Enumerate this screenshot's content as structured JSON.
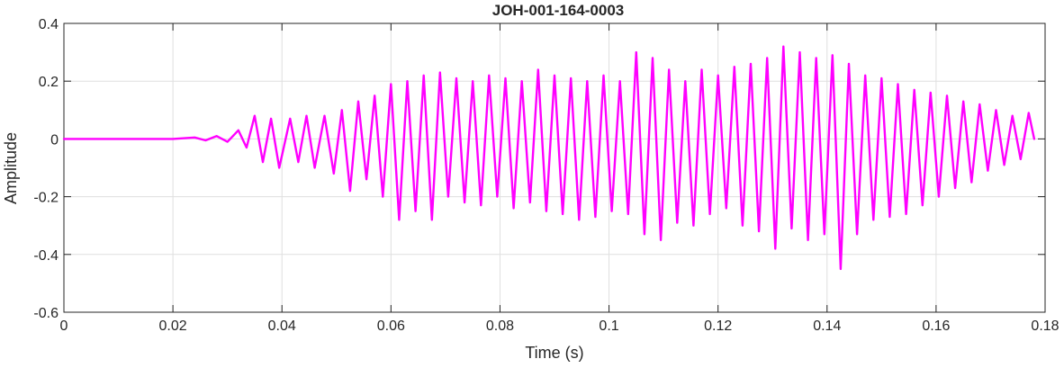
{
  "chart_data": {
    "type": "line",
    "title": "JOH-001-164-0003",
    "xlabel": "Time (s)",
    "ylabel": "Amplitude",
    "xlim": [
      0,
      0.18
    ],
    "ylim": [
      -0.6,
      0.4
    ],
    "xticks": [
      0,
      0.02,
      0.04,
      0.06,
      0.08,
      0.1,
      0.12,
      0.14,
      0.16,
      0.18
    ],
    "xtick_labels": [
      "0",
      "0.02",
      "0.04",
      "0.06",
      "0.08",
      "0.1",
      "0.12",
      "0.14",
      "0.16",
      "0.18"
    ],
    "yticks": [
      -0.6,
      -0.4,
      -0.2,
      0,
      0.2,
      0.4
    ],
    "ytick_labels": [
      "-0.6",
      "-0.4",
      "-0.2",
      "0",
      "0.2",
      "0.4"
    ],
    "grid": true,
    "line_color": "#ff00ff",
    "series": [
      {
        "name": "",
        "x": [
          0,
          0.01,
          0.02,
          0.024,
          0.026,
          0.028,
          0.03,
          0.032,
          0.0335,
          0.035,
          0.0365,
          0.038,
          0.0395,
          0.0415,
          0.043,
          0.0445,
          0.046,
          0.0478,
          0.0495,
          0.051,
          0.0525,
          0.054,
          0.0555,
          0.057,
          0.0585,
          0.06,
          0.0615,
          0.063,
          0.0645,
          0.066,
          0.0675,
          0.069,
          0.0705,
          0.072,
          0.0735,
          0.075,
          0.0765,
          0.078,
          0.0795,
          0.081,
          0.0825,
          0.084,
          0.0855,
          0.087,
          0.0885,
          0.09,
          0.0915,
          0.093,
          0.0945,
          0.096,
          0.0975,
          0.099,
          0.1005,
          0.102,
          0.1035,
          0.105,
          0.1065,
          0.108,
          0.1095,
          0.111,
          0.1125,
          0.114,
          0.1155,
          0.117,
          0.1185,
          0.12,
          0.1215,
          0.123,
          0.1245,
          0.126,
          0.1275,
          0.129,
          0.1305,
          0.132,
          0.1335,
          0.135,
          0.1365,
          0.138,
          0.1395,
          0.141,
          0.1425,
          0.144,
          0.1455,
          0.147,
          0.1485,
          0.15,
          0.1515,
          0.153,
          0.1545,
          0.156,
          0.1575,
          0.159,
          0.1605,
          0.162,
          0.1635,
          0.165,
          0.1665,
          0.168,
          0.1695,
          0.171,
          0.1725,
          0.174,
          0.1755,
          0.177,
          0.178
        ],
        "y": [
          0,
          0,
          0,
          0.005,
          -0.005,
          0.01,
          -0.01,
          0.03,
          -0.03,
          0.08,
          -0.08,
          0.07,
          -0.1,
          0.07,
          -0.08,
          0.08,
          -0.1,
          0.08,
          -0.12,
          0.1,
          -0.18,
          0.13,
          -0.14,
          0.15,
          -0.2,
          0.19,
          -0.28,
          0.2,
          -0.25,
          0.22,
          -0.28,
          0.23,
          -0.2,
          0.21,
          -0.22,
          0.2,
          -0.23,
          0.22,
          -0.2,
          0.21,
          -0.24,
          0.2,
          -0.22,
          0.24,
          -0.25,
          0.22,
          -0.26,
          0.21,
          -0.28,
          0.2,
          -0.27,
          0.22,
          -0.25,
          0.2,
          -0.26,
          0.3,
          -0.33,
          0.28,
          -0.35,
          0.24,
          -0.29,
          0.2,
          -0.3,
          0.24,
          -0.26,
          0.22,
          -0.24,
          0.25,
          -0.3,
          0.26,
          -0.32,
          0.28,
          -0.38,
          0.32,
          -0.31,
          0.3,
          -0.35,
          0.28,
          -0.33,
          0.29,
          -0.45,
          0.26,
          -0.33,
          0.22,
          -0.28,
          0.21,
          -0.27,
          0.19,
          -0.26,
          0.17,
          -0.23,
          0.16,
          -0.2,
          0.15,
          -0.17,
          0.13,
          -0.15,
          0.12,
          -0.11,
          0.1,
          -0.09,
          0.08,
          -0.07,
          0.09,
          0.0
        ]
      }
    ]
  }
}
